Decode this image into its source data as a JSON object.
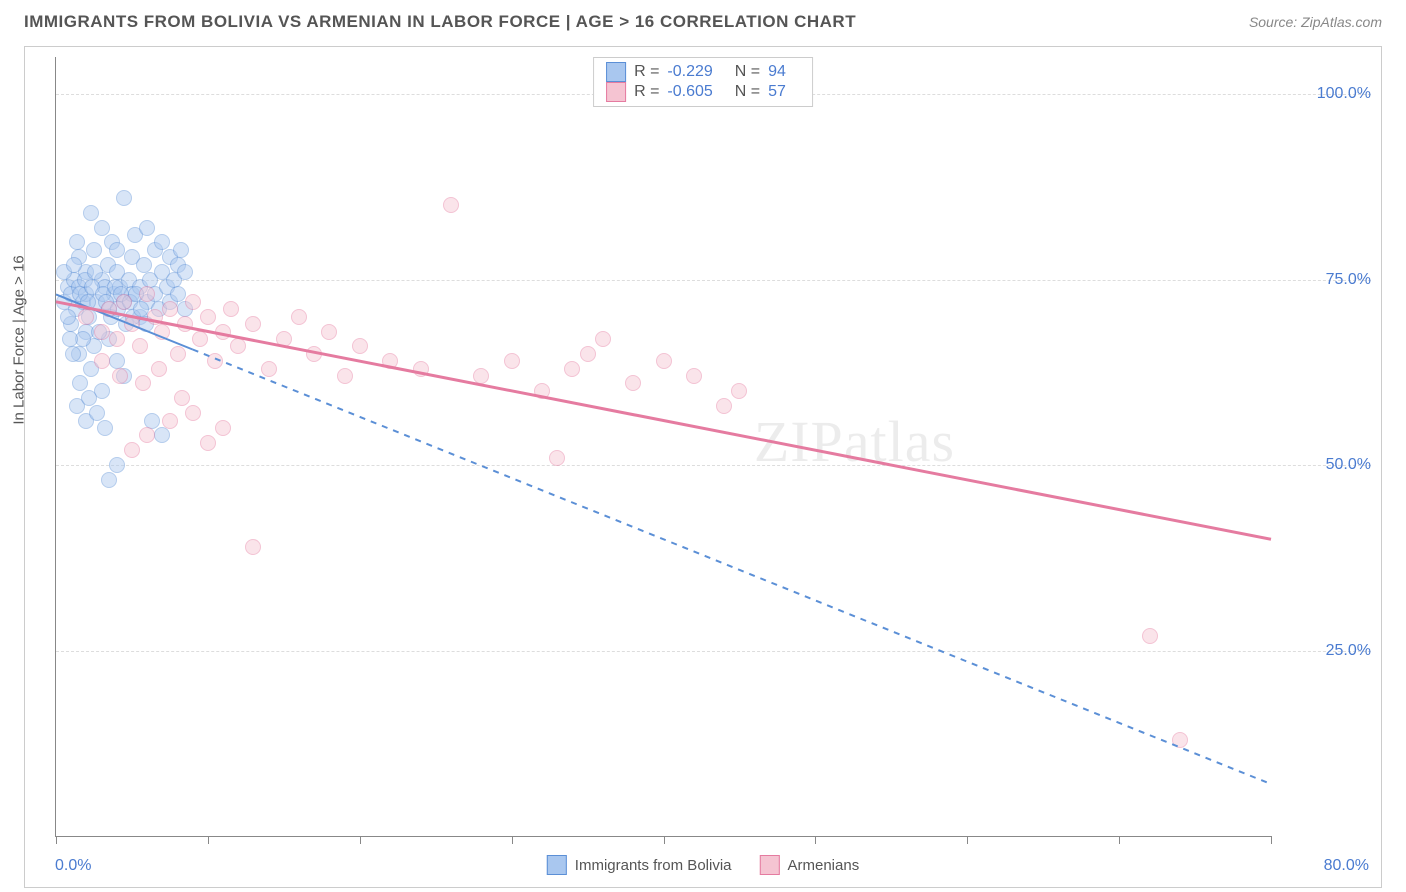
{
  "title": "IMMIGRANTS FROM BOLIVIA VS ARMENIAN IN LABOR FORCE | AGE > 16 CORRELATION CHART",
  "source": "Source: ZipAtlas.com",
  "watermark": "ZIPatlas",
  "y_axis_label": "In Labor Force | Age > 16",
  "chart": {
    "type": "scatter",
    "xlim": [
      0,
      80
    ],
    "ylim": [
      0,
      105
    ],
    "x_ticks": [
      0,
      10,
      20,
      30,
      40,
      50,
      60,
      70,
      80
    ],
    "x_tick_labels": {
      "0": "0.0%",
      "80": "80.0%"
    },
    "y_ticks": [
      25,
      50,
      75,
      100
    ],
    "y_tick_labels": [
      "25.0%",
      "50.0%",
      "75.0%",
      "100.0%"
    ],
    "grid_color": "#dddddd",
    "background_color": "#ffffff",
    "marker_radius": 8,
    "marker_opacity": 0.45,
    "series": [
      {
        "name": "Immigrants from Bolivia",
        "color_fill": "#a9c7ef",
        "color_stroke": "#5b8fd6",
        "R": "-0.229",
        "N": "94",
        "trend": {
          "x1": 0,
          "y1": 73,
          "x2": 80,
          "y2": 7,
          "dashed": true,
          "solid_to_x": 9,
          "width": 2
        },
        "points": [
          [
            0.5,
            72
          ],
          [
            0.8,
            74
          ],
          [
            1,
            73
          ],
          [
            1.2,
            75
          ],
          [
            1.3,
            71
          ],
          [
            1.5,
            78
          ],
          [
            1.5,
            74
          ],
          [
            1.8,
            72
          ],
          [
            2,
            76
          ],
          [
            2,
            73
          ],
          [
            2.2,
            70
          ],
          [
            2.3,
            84
          ],
          [
            2.5,
            79
          ],
          [
            2.7,
            72
          ],
          [
            3,
            75
          ],
          [
            3,
            82
          ],
          [
            3.2,
            74
          ],
          [
            3.4,
            77
          ],
          [
            3.5,
            71
          ],
          [
            3.7,
            80
          ],
          [
            3.8,
            73
          ],
          [
            4,
            76
          ],
          [
            4,
            79
          ],
          [
            4.2,
            74
          ],
          [
            4.5,
            72
          ],
          [
            4.5,
            86
          ],
          [
            4.8,
            75
          ],
          [
            5,
            73
          ],
          [
            5,
            78
          ],
          [
            5.2,
            81
          ],
          [
            5.5,
            74
          ],
          [
            5.5,
            70
          ],
          [
            5.8,
            77
          ],
          [
            6,
            72
          ],
          [
            6,
            82
          ],
          [
            6.2,
            75
          ],
          [
            6.5,
            79
          ],
          [
            6.5,
            73
          ],
          [
            6.8,
            71
          ],
          [
            7,
            76
          ],
          [
            7,
            80
          ],
          [
            7.3,
            74
          ],
          [
            7.5,
            78
          ],
          [
            7.5,
            72
          ],
          [
            7.8,
            75
          ],
          [
            8,
            73
          ],
          [
            8,
            77
          ],
          [
            8.2,
            79
          ],
          [
            8.5,
            71
          ],
          [
            8.5,
            76
          ],
          [
            1.5,
            65
          ],
          [
            2,
            68
          ],
          [
            2.5,
            66
          ],
          [
            3,
            60
          ],
          [
            3.5,
            67
          ],
          [
            4,
            64
          ],
          [
            4.5,
            62
          ],
          [
            1,
            69
          ],
          [
            1.8,
            67
          ],
          [
            2.3,
            63
          ],
          [
            0.5,
            76
          ],
          [
            0.8,
            70
          ],
          [
            1.2,
            77
          ],
          [
            1.4,
            80
          ],
          [
            1.6,
            73
          ],
          [
            1.9,
            75
          ],
          [
            2.1,
            72
          ],
          [
            2.4,
            74
          ],
          [
            2.6,
            76
          ],
          [
            2.8,
            68
          ],
          [
            3.1,
            73
          ],
          [
            3.3,
            72
          ],
          [
            3.6,
            70
          ],
          [
            3.9,
            74
          ],
          [
            4.1,
            71
          ],
          [
            4.3,
            73
          ],
          [
            4.6,
            69
          ],
          [
            4.9,
            72
          ],
          [
            5.1,
            70
          ],
          [
            5.3,
            73
          ],
          [
            5.6,
            71
          ],
          [
            5.9,
            69
          ],
          [
            3.5,
            48
          ],
          [
            4,
            50
          ],
          [
            6.3,
            56
          ],
          [
            7,
            54
          ],
          [
            2,
            56
          ],
          [
            1.4,
            58
          ],
          [
            1.6,
            61
          ],
          [
            2.2,
            59
          ],
          [
            2.7,
            57
          ],
          [
            3.2,
            55
          ],
          [
            0.9,
            67
          ],
          [
            1.1,
            65
          ]
        ]
      },
      {
        "name": "Armenians",
        "color_fill": "#f5c4d2",
        "color_stroke": "#e57ba0",
        "R": "-0.605",
        "N": "57",
        "trend": {
          "x1": 0,
          "y1": 72,
          "x2": 80,
          "y2": 40,
          "dashed": false,
          "solid_to_x": 80,
          "width": 3
        },
        "points": [
          [
            2,
            70
          ],
          [
            3,
            68
          ],
          [
            3.5,
            71
          ],
          [
            4,
            67
          ],
          [
            4.5,
            72
          ],
          [
            5,
            69
          ],
          [
            5.5,
            66
          ],
          [
            6,
            73
          ],
          [
            6.5,
            70
          ],
          [
            7,
            68
          ],
          [
            7.5,
            71
          ],
          [
            8,
            65
          ],
          [
            8.5,
            69
          ],
          [
            9,
            72
          ],
          [
            9.5,
            67
          ],
          [
            10,
            70
          ],
          [
            10.5,
            64
          ],
          [
            11,
            68
          ],
          [
            11.5,
            71
          ],
          [
            12,
            66
          ],
          [
            13,
            69
          ],
          [
            14,
            63
          ],
          [
            15,
            67
          ],
          [
            16,
            70
          ],
          [
            17,
            65
          ],
          [
            18,
            68
          ],
          [
            19,
            62
          ],
          [
            20,
            66
          ],
          [
            22,
            64
          ],
          [
            24,
            63
          ],
          [
            26,
            85
          ],
          [
            28,
            62
          ],
          [
            30,
            64
          ],
          [
            32,
            60
          ],
          [
            34,
            63
          ],
          [
            36,
            67
          ],
          [
            38,
            61
          ],
          [
            40,
            64
          ],
          [
            42,
            62
          ],
          [
            45,
            60
          ],
          [
            33,
            51
          ],
          [
            35,
            65
          ],
          [
            5,
            52
          ],
          [
            6,
            54
          ],
          [
            7.5,
            56
          ],
          [
            9,
            57
          ],
          [
            10,
            53
          ],
          [
            11,
            55
          ],
          [
            13,
            39
          ],
          [
            72,
            27
          ],
          [
            74,
            13
          ],
          [
            3,
            64
          ],
          [
            4.2,
            62
          ],
          [
            5.7,
            61
          ],
          [
            6.8,
            63
          ],
          [
            8.3,
            59
          ],
          [
            44,
            58
          ]
        ]
      }
    ]
  },
  "legend_top": {
    "rows": [
      {
        "swatch_fill": "#a9c7ef",
        "swatch_stroke": "#5b8fd6",
        "R": "-0.229",
        "N": "94"
      },
      {
        "swatch_fill": "#f5c4d2",
        "swatch_stroke": "#e57ba0",
        "R": "-0.605",
        "N": "57"
      }
    ]
  },
  "legend_bottom": {
    "items": [
      {
        "swatch_fill": "#a9c7ef",
        "swatch_stroke": "#5b8fd6",
        "label": "Immigrants from Bolivia"
      },
      {
        "swatch_fill": "#f5c4d2",
        "swatch_stroke": "#e57ba0",
        "label": "Armenians"
      }
    ]
  }
}
